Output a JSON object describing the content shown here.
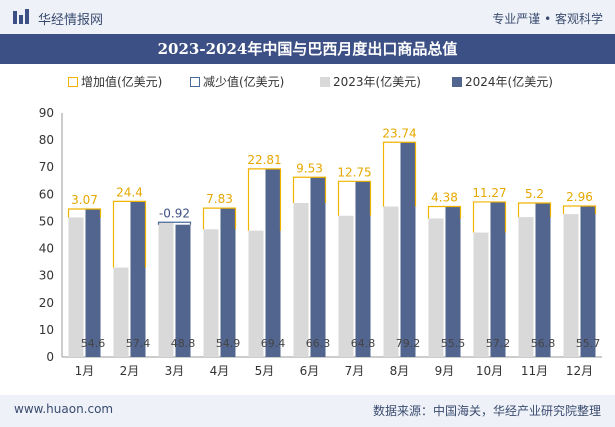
{
  "header": {
    "brand": "华经情报网",
    "tagline": "专业严谨 • 客观科学"
  },
  "title": "2023-2024年中国与巴西月度出口商品总值",
  "legend": {
    "increase": "增加值(亿美元)",
    "decrease": "减少值(亿美元)",
    "y2023": "2023年(亿美元)",
    "y2024": "2024年(亿美元)"
  },
  "footer": {
    "url": "www.huaon.com",
    "source": "数据来源：中国海关，华经产业研究院整理"
  },
  "colors": {
    "increase": "#f0b400",
    "decrease": "#4a6a9a",
    "y2023": "#d9d9d9",
    "y2024": "#52658f",
    "increase_label": "#e6a800",
    "decrease_label": "#3d5085"
  },
  "chart_data": {
    "type": "bar",
    "categories": [
      "1月",
      "2月",
      "3月",
      "4月",
      "5月",
      "6月",
      "7月",
      "8月",
      "9月",
      "10月",
      "11月",
      "12月"
    ],
    "series": [
      {
        "name": "2023年(亿美元)",
        "values": [
          51.5,
          33.0,
          49.7,
          47.1,
          46.6,
          56.8,
          52.1,
          55.5,
          51.1,
          45.9,
          51.6,
          52.7
        ]
      },
      {
        "name": "2024年(亿美元)",
        "values": [
          54.6,
          57.4,
          48.8,
          54.9,
          69.4,
          66.3,
          64.8,
          79.2,
          55.5,
          57.2,
          56.8,
          55.7
        ]
      }
    ],
    "change_labels": [
      "3.07",
      "24.4",
      "-0.92",
      "7.83",
      "22.81",
      "9.53",
      "12.75",
      "23.74",
      "4.38",
      "11.27",
      "5.2",
      "2.96"
    ],
    "value_labels_2024": [
      "54.6",
      "57.4",
      "48.8",
      "54.9",
      "69.4",
      "66.3",
      "64.8",
      "79.2",
      "55.5",
      "57.2",
      "56.8",
      "55.7"
    ],
    "y_ticks": [
      "0",
      "10",
      "20",
      "30",
      "40",
      "50",
      "60",
      "70",
      "80",
      "90"
    ],
    "ylim": [
      0,
      90
    ],
    "grid": false,
    "legend_position": "top"
  }
}
